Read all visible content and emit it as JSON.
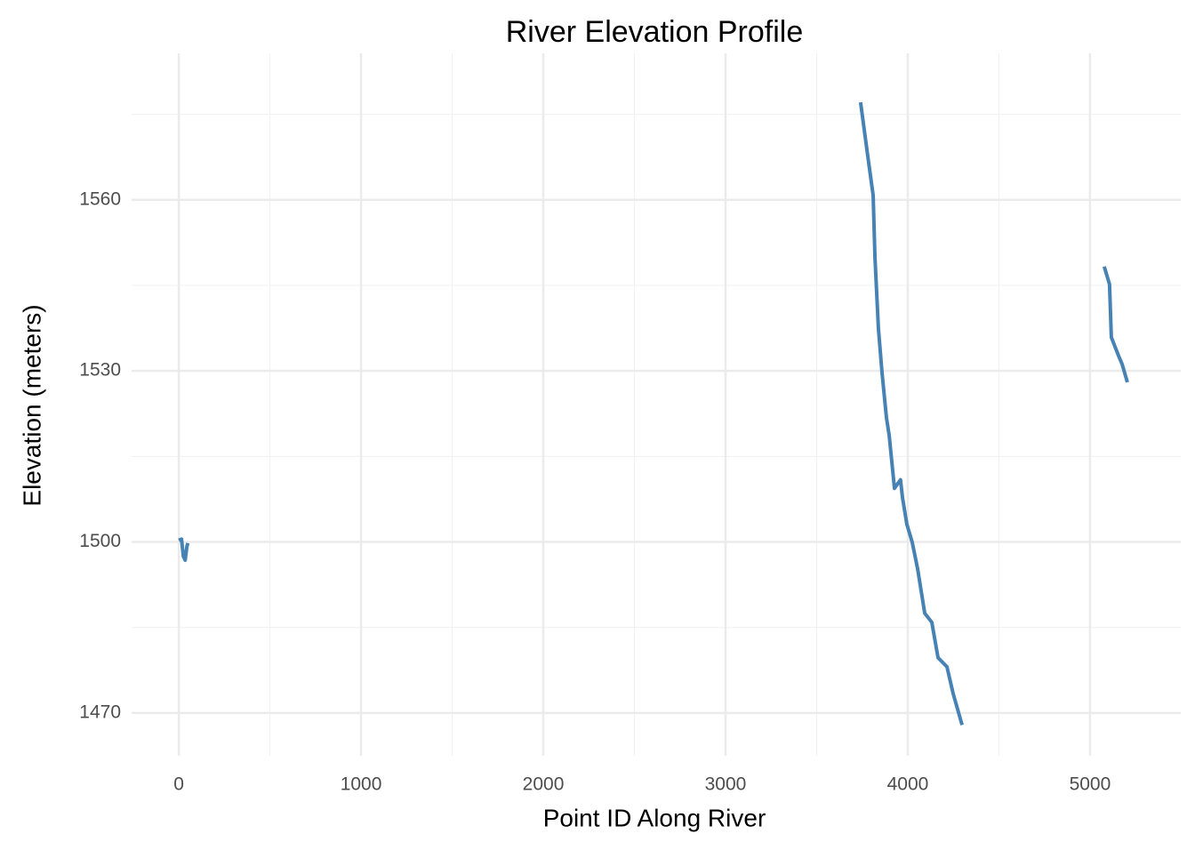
{
  "chart_data": {
    "type": "line",
    "title": "River Elevation Profile",
    "x_label": "Point ID Along River",
    "y_label": "Elevation (meters)",
    "x": [
      0,
      15,
      25,
      35,
      45,
      50,
      null,
      3741,
      3780,
      3810,
      3820,
      3839,
      3859,
      3883,
      3898,
      3927,
      3960,
      3971,
      3995,
      4024,
      4054,
      4093,
      4132,
      4166,
      4215,
      4249,
      4298,
      null,
      5078,
      5107,
      5117,
      5156,
      5176,
      5205
    ],
    "series": [
      {
        "name": "Elevation",
        "color": "#4682b4",
        "values": [
          1500.3,
          1500.5,
          1497.5,
          1496.8,
          1499.3,
          1499.8,
          null,
          1577.1,
          1567.8,
          1560.8,
          1549.9,
          1537.4,
          1529.6,
          1521.8,
          1518.7,
          1509.4,
          1510.9,
          1507.8,
          1503.1,
          1500,
          1495.3,
          1487.5,
          1485.9,
          1479.7,
          1478.1,
          1473.4,
          1467.9,
          null,
          1548.3,
          1545.2,
          1535.9,
          1532.7,
          1531.2,
          1528
        ]
      }
    ],
    "xlim": [
      -259,
      5498
    ],
    "xticks": [
      0,
      1000,
      2000,
      3000,
      4000,
      5000
    ],
    "x_minor_ticks": [
      500,
      1500,
      2500,
      3500,
      4500
    ],
    "ylim": [
      1462.5,
      1585.7
    ],
    "yticks": [
      1470,
      1500,
      1530,
      1560
    ],
    "y_minor_ticks": [
      1485,
      1515,
      1545,
      1575
    ],
    "grid": true
  }
}
